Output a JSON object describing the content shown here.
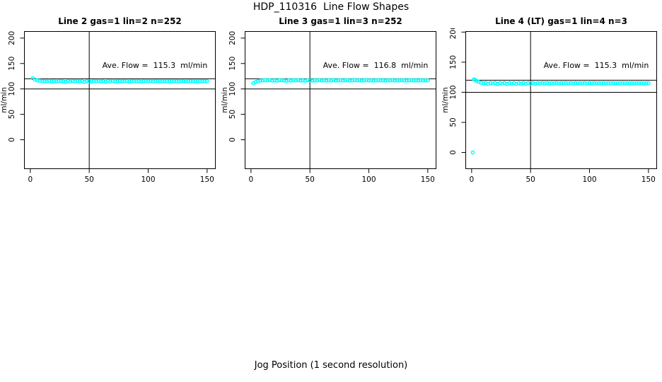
{
  "page": {
    "main_title": "HDP_110316  Line Flow Shapes",
    "x_axis_label": "Jog Position (1 second resolution)",
    "background_color": "#ffffff",
    "axis_color": "#000000"
  },
  "chart_data": [
    {
      "type": "scatter",
      "title": "Line 2 gas=1 lin=2 n=252",
      "ylabel": "ml/min",
      "annotation": "Ave. Flow =  115.3  ml/min",
      "ave_flow_ml_min": 115.3,
      "n": 252,
      "point_color": "#00FFFF",
      "x_ticks": [
        0,
        50,
        100,
        150
      ],
      "y_ticks": [
        0,
        50,
        100,
        150,
        200
      ],
      "xlim": [
        -5,
        157
      ],
      "ylim": [
        -57,
        213
      ],
      "ref_line_x": 50,
      "ref_lines_y": [
        120,
        100
      ],
      "points": [
        [
          2,
          121.2
        ],
        [
          4,
          118.4
        ],
        [
          6,
          116.9
        ],
        [
          8,
          116.1
        ],
        [
          10,
          115.6
        ],
        [
          12,
          115.5
        ],
        [
          14,
          115.0
        ],
        [
          16,
          115.7
        ],
        [
          18,
          114.7
        ],
        [
          20,
          115.3
        ],
        [
          22,
          114.5
        ],
        [
          24,
          115.6
        ],
        [
          26,
          115.2
        ],
        [
          28,
          114.9
        ],
        [
          30,
          113.8
        ],
        [
          32,
          115.5
        ],
        [
          34,
          114.8
        ],
        [
          36,
          115.4
        ],
        [
          38,
          115.0
        ],
        [
          40,
          115.6
        ],
        [
          42,
          114.7
        ],
        [
          44,
          115.3
        ],
        [
          46,
          113.9
        ],
        [
          48,
          115.5
        ],
        [
          50,
          115.1
        ],
        [
          52,
          114.6
        ],
        [
          54,
          115.4
        ],
        [
          56,
          115.0
        ],
        [
          58,
          115.7
        ],
        [
          60,
          114.8
        ],
        [
          62,
          115.3
        ],
        [
          64,
          114.1
        ],
        [
          66,
          115.5
        ],
        [
          68,
          115.0
        ],
        [
          70,
          115.6
        ],
        [
          72,
          114.7
        ],
        [
          74,
          115.2
        ],
        [
          76,
          115.5
        ],
        [
          78,
          114.9
        ],
        [
          80,
          115.3
        ],
        [
          82,
          115.6
        ],
        [
          84,
          114.8
        ],
        [
          86,
          115.2
        ],
        [
          88,
          115.5
        ],
        [
          90,
          115.0
        ],
        [
          92,
          115.4
        ],
        [
          94,
          114.8
        ],
        [
          96,
          115.3
        ],
        [
          98,
          115.6
        ],
        [
          100,
          115.0
        ],
        [
          102,
          115.4
        ],
        [
          104,
          114.9
        ],
        [
          106,
          115.2
        ],
        [
          108,
          115.5
        ],
        [
          110,
          115.0
        ],
        [
          112,
          115.3
        ],
        [
          114,
          114.8
        ],
        [
          116,
          115.4
        ],
        [
          118,
          115.1
        ],
        [
          120,
          115.5
        ],
        [
          122,
          114.9
        ],
        [
          124,
          115.3
        ],
        [
          126,
          115.0
        ],
        [
          128,
          115.4
        ],
        [
          130,
          115.2
        ],
        [
          132,
          114.8
        ],
        [
          134,
          115.3
        ],
        [
          136,
          115.5
        ],
        [
          138,
          115.0
        ],
        [
          140,
          115.3
        ],
        [
          142,
          114.9
        ],
        [
          144,
          115.4
        ],
        [
          146,
          115.1
        ],
        [
          148,
          115.3
        ],
        [
          150,
          115.2
        ]
      ]
    },
    {
      "type": "scatter",
      "title": "Line 3 gas=1 lin=3 n=252",
      "ylabel": "ml/min",
      "annotation": "Ave. Flow =  116.8  ml/min",
      "ave_flow_ml_min": 116.8,
      "n": 252,
      "point_color": "#00FFFF",
      "x_ticks": [
        0,
        50,
        100,
        150
      ],
      "y_ticks": [
        0,
        50,
        100,
        150,
        200
      ],
      "xlim": [
        -5,
        157
      ],
      "ylim": [
        -57,
        213
      ],
      "ref_line_x": 50,
      "ref_lines_y": [
        120,
        100
      ],
      "points": [
        [
          2,
          111.3
        ],
        [
          4,
          113.6
        ],
        [
          6,
          115.4
        ],
        [
          8,
          116.3
        ],
        [
          10,
          116.7
        ],
        [
          12,
          117.1
        ],
        [
          14,
          116.6
        ],
        [
          16,
          117.2
        ],
        [
          18,
          116.3
        ],
        [
          20,
          116.9
        ],
        [
          22,
          116.1
        ],
        [
          24,
          117.1
        ],
        [
          26,
          116.8
        ],
        [
          28,
          116.5
        ],
        [
          30,
          116.0
        ],
        [
          32,
          117.0
        ],
        [
          34,
          116.4
        ],
        [
          36,
          117.0
        ],
        [
          38,
          116.6
        ],
        [
          40,
          117.2
        ],
        [
          42,
          116.3
        ],
        [
          44,
          116.9
        ],
        [
          46,
          116.2
        ],
        [
          48,
          117.1
        ],
        [
          50,
          116.7
        ],
        [
          52,
          116.2
        ],
        [
          54,
          117.0
        ],
        [
          56,
          116.6
        ],
        [
          58,
          117.2
        ],
        [
          60,
          116.4
        ],
        [
          62,
          116.9
        ],
        [
          64,
          116.3
        ],
        [
          66,
          117.1
        ],
        [
          68,
          116.6
        ],
        [
          70,
          117.2
        ],
        [
          72,
          116.3
        ],
        [
          74,
          116.8
        ],
        [
          76,
          117.1
        ],
        [
          78,
          116.5
        ],
        [
          80,
          116.9
        ],
        [
          82,
          117.2
        ],
        [
          84,
          116.4
        ],
        [
          86,
          116.8
        ],
        [
          88,
          117.1
        ],
        [
          90,
          116.6
        ],
        [
          92,
          117.0
        ],
        [
          94,
          116.4
        ],
        [
          96,
          116.9
        ],
        [
          98,
          117.2
        ],
        [
          100,
          116.6
        ],
        [
          102,
          117.0
        ],
        [
          104,
          116.5
        ],
        [
          106,
          116.8
        ],
        [
          108,
          117.1
        ],
        [
          110,
          116.6
        ],
        [
          112,
          116.9
        ],
        [
          114,
          116.4
        ],
        [
          116,
          117.0
        ],
        [
          118,
          116.7
        ],
        [
          120,
          117.1
        ],
        [
          122,
          116.5
        ],
        [
          124,
          116.9
        ],
        [
          126,
          116.6
        ],
        [
          128,
          117.0
        ],
        [
          130,
          116.8
        ],
        [
          132,
          116.4
        ],
        [
          134,
          116.9
        ],
        [
          136,
          117.1
        ],
        [
          138,
          116.6
        ],
        [
          140,
          116.9
        ],
        [
          142,
          116.5
        ],
        [
          144,
          117.0
        ],
        [
          146,
          116.7
        ],
        [
          148,
          116.9
        ],
        [
          150,
          116.8
        ]
      ]
    },
    {
      "type": "scatter",
      "title": "Line 4 (LT) gas=1 lin=4 n=3",
      "ylabel": "ml/min",
      "annotation": "Ave. Flow =  115.3  ml/min",
      "ave_flow_ml_min": 115.3,
      "n": 3,
      "point_color": "#00FFFF",
      "x_ticks": [
        0,
        50,
        100,
        150
      ],
      "y_ticks": [
        0,
        50,
        100,
        150,
        200
      ],
      "xlim": [
        -5,
        157
      ],
      "ylim": [
        -27,
        201
      ],
      "ref_line_x": 50,
      "ref_lines_y": [
        120,
        100
      ],
      "points": [
        [
          1,
          0
        ],
        [
          2,
          121.4
        ],
        [
          3,
          120.6
        ],
        [
          4,
          119.0
        ],
        [
          6,
          117.2
        ],
        [
          8,
          116.0
        ],
        [
          10,
          114.8
        ],
        [
          12,
          115.4
        ],
        [
          14,
          113.9
        ],
        [
          16,
          115.2
        ],
        [
          18,
          114.3
        ],
        [
          20,
          115.5
        ],
        [
          22,
          113.6
        ],
        [
          24,
          115.1
        ],
        [
          26,
          114.5
        ],
        [
          28,
          115.4
        ],
        [
          30,
          113.8
        ],
        [
          32,
          115.2
        ],
        [
          34,
          114.6
        ],
        [
          36,
          115.3
        ],
        [
          38,
          113.9
        ],
        [
          40,
          115.1
        ],
        [
          42,
          114.4
        ],
        [
          44,
          115.4
        ],
        [
          46,
          114.0
        ],
        [
          48,
          115.2
        ],
        [
          50,
          114.6
        ],
        [
          52,
          115.3
        ],
        [
          54,
          114.2
        ],
        [
          56,
          115.1
        ],
        [
          58,
          114.7
        ],
        [
          60,
          115.3
        ],
        [
          62,
          114.8
        ],
        [
          64,
          115.2
        ],
        [
          66,
          114.6
        ],
        [
          68,
          115.1
        ],
        [
          70,
          114.8
        ],
        [
          72,
          115.3
        ],
        [
          74,
          114.7
        ],
        [
          76,
          115.1
        ],
        [
          78,
          114.9
        ],
        [
          80,
          115.2
        ],
        [
          82,
          114.7
        ],
        [
          84,
          115.1
        ],
        [
          86,
          114.8
        ],
        [
          88,
          115.2
        ],
        [
          90,
          114.7
        ],
        [
          92,
          115.1
        ],
        [
          94,
          114.8
        ],
        [
          96,
          115.2
        ],
        [
          98,
          114.7
        ],
        [
          100,
          115.1
        ],
        [
          102,
          114.8
        ],
        [
          104,
          115.2
        ],
        [
          106,
          114.7
        ],
        [
          108,
          115.0
        ],
        [
          110,
          114.8
        ],
        [
          112,
          115.2
        ],
        [
          114,
          114.7
        ],
        [
          116,
          115.1
        ],
        [
          118,
          114.8
        ],
        [
          120,
          115.1
        ],
        [
          122,
          114.7
        ],
        [
          124,
          115.0
        ],
        [
          126,
          114.8
        ],
        [
          128,
          115.1
        ],
        [
          130,
          114.7
        ],
        [
          132,
          115.0
        ],
        [
          134,
          114.8
        ],
        [
          136,
          115.1
        ],
        [
          138,
          114.7
        ],
        [
          140,
          115.0
        ],
        [
          142,
          114.8
        ],
        [
          144,
          115.1
        ],
        [
          146,
          114.7
        ],
        [
          148,
          115.0
        ],
        [
          150,
          114.9
        ]
      ]
    }
  ]
}
